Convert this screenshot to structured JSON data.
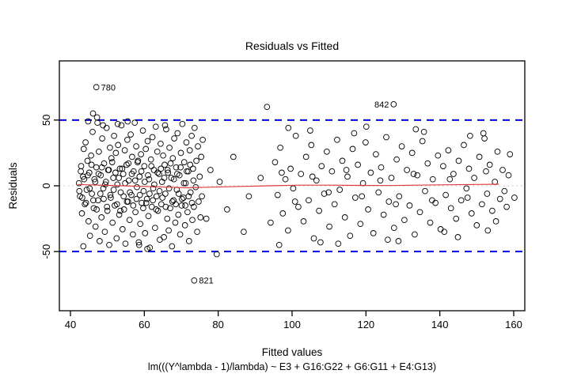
{
  "chart_data": {
    "type": "scatter",
    "title": "Residuals vs Fitted",
    "xlabel": "Fitted values",
    "ylabel": "Residuals",
    "subtitle": "lm(((Y^lambda - 1)/lambda) ~ E3 + G16:G22 + G6:G11 + E4:G13)",
    "xlim": [
      37,
      163
    ],
    "ylim": [
      -95,
      95
    ],
    "x_ticks": [
      40,
      60,
      80,
      100,
      120,
      140,
      160
    ],
    "y_ticks": [
      -50,
      0,
      50
    ],
    "grid": false,
    "legend": "none",
    "reference_lines": [
      {
        "y": 50,
        "style": "dashed",
        "color": "#0000ee",
        "width": 2
      },
      {
        "y": -50,
        "style": "dashed",
        "color": "#0000ee",
        "width": 2
      },
      {
        "y": 0,
        "style": "dotted",
        "color": "#c8c8c8",
        "width": 1.2
      }
    ],
    "smoother": {
      "color": "#e03c3c",
      "width": 1.2,
      "points": [
        [
          42,
          1
        ],
        [
          48,
          0.5
        ],
        [
          54,
          0
        ],
        [
          60,
          -0.5
        ],
        [
          66,
          -1
        ],
        [
          72,
          -1.5
        ],
        [
          78,
          -1
        ],
        [
          86,
          -0.5
        ],
        [
          94,
          0
        ],
        [
          102,
          0.5
        ],
        [
          110,
          0.5
        ],
        [
          118,
          0.3
        ],
        [
          126,
          0.2
        ],
        [
          134,
          0.5
        ],
        [
          142,
          0.8
        ],
        [
          150,
          1
        ],
        [
          156,
          1.2
        ]
      ]
    },
    "outliers": [
      {
        "x": 47.0,
        "y": 75,
        "label": "780",
        "label_side": "right"
      },
      {
        "x": 127.5,
        "y": 62,
        "label": "842",
        "label_side": "left"
      },
      {
        "x": 73.5,
        "y": -72,
        "label": "821",
        "label_side": "right"
      }
    ],
    "points": [
      [
        42.3,
        2
      ],
      [
        42.6,
        -8
      ],
      [
        42.9,
        15
      ],
      [
        43.1,
        -21
      ],
      [
        43.4,
        7
      ],
      [
        43.6,
        28
      ],
      [
        43.9,
        -14
      ],
      [
        44.1,
        33
      ],
      [
        44.4,
        -3
      ],
      [
        44.6,
        19
      ],
      [
        44.9,
        -27
      ],
      [
        45.1,
        10
      ],
      [
        45.3,
        -38
      ],
      [
        45.6,
        23
      ],
      [
        45.8,
        -6
      ],
      [
        46.0,
        41
      ],
      [
        46.3,
        -17
      ],
      [
        46.5,
        5
      ],
      [
        46.8,
        -31
      ],
      [
        47.0,
        14
      ],
      [
        47.2,
        52
      ],
      [
        47.5,
        -11
      ],
      [
        47.7,
        26
      ],
      [
        47.9,
        -42
      ],
      [
        48.2,
        8
      ],
      [
        48.4,
        -24
      ],
      [
        48.6,
        36
      ],
      [
        48.9,
        -2
      ],
      [
        49.1,
        17
      ],
      [
        49.3,
        -35
      ],
      [
        49.6,
        3
      ],
      [
        49.8,
        44
      ],
      [
        50.0,
        -19
      ],
      [
        50.2,
        12
      ],
      [
        50.5,
        -45
      ],
      [
        50.7,
        29
      ],
      [
        50.9,
        -9
      ],
      [
        51.1,
        21
      ],
      [
        51.4,
        -28
      ],
      [
        51.6,
        6
      ],
      [
        51.8,
        38
      ],
      [
        52.0,
        -15
      ],
      [
        52.3,
        25
      ],
      [
        52.5,
        -40
      ],
      [
        52.7,
        1
      ],
      [
        52.9,
        31
      ],
      [
        53.2,
        -22
      ],
      [
        53.4,
        13
      ],
      [
        53.6,
        -5
      ],
      [
        53.8,
        46
      ],
      [
        54.1,
        -33
      ],
      [
        54.3,
        9
      ],
      [
        54.5,
        -18
      ],
      [
        54.7,
        27
      ],
      [
        54.9,
        -44
      ],
      [
        55.2,
        16
      ],
      [
        55.4,
        35
      ],
      [
        55.6,
        -12
      ],
      [
        55.8,
        4
      ],
      [
        56.0,
        -26
      ],
      [
        56.3,
        39
      ],
      [
        56.5,
        -7
      ],
      [
        56.7,
        22
      ],
      [
        56.9,
        -37
      ],
      [
        57.1,
        11
      ],
      [
        57.4,
        48
      ],
      [
        57.6,
        -20
      ],
      [
        57.8,
        30
      ],
      [
        58.0,
        -1
      ],
      [
        58.2,
        18
      ],
      [
        58.5,
        -43
      ],
      [
        58.7,
        7
      ],
      [
        58.9,
        -29
      ],
      [
        59.1,
        24
      ],
      [
        59.3,
        -13
      ],
      [
        59.6,
        42
      ],
      [
        59.8,
        -4
      ],
      [
        60.0,
        15
      ],
      [
        60.2,
        -36
      ],
      [
        60.4,
        28
      ],
      [
        60.7,
        -10
      ],
      [
        60.9,
        34
      ],
      [
        61.1,
        -23
      ],
      [
        61.3,
        5
      ],
      [
        61.5,
        -47
      ],
      [
        61.8,
        20
      ],
      [
        62.0,
        -16
      ],
      [
        62.2,
        37
      ],
      [
        62.4,
        -2
      ],
      [
        62.6,
        12
      ],
      [
        62.9,
        -32
      ],
      [
        63.1,
        45
      ],
      [
        63.3,
        -8
      ],
      [
        63.5,
        26
      ],
      [
        63.7,
        -19
      ],
      [
        64.0,
        9
      ],
      [
        64.2,
        -41
      ],
      [
        64.4,
        32
      ],
      [
        64.6,
        -14
      ],
      [
        64.8,
        3
      ],
      [
        65.1,
        23
      ],
      [
        65.3,
        -39
      ],
      [
        65.5,
        16
      ],
      [
        65.7,
        -6
      ],
      [
        65.9,
        43
      ],
      [
        66.2,
        -25
      ],
      [
        66.4,
        10
      ],
      [
        66.6,
        -34
      ],
      [
        66.8,
        29
      ],
      [
        67.0,
        -17
      ],
      [
        67.3,
        6
      ],
      [
        67.5,
        -46
      ],
      [
        67.7,
        21
      ],
      [
        67.9,
        -11
      ],
      [
        68.1,
        36
      ],
      [
        68.4,
        -28
      ],
      [
        68.6,
        14
      ],
      [
        68.8,
        -3
      ],
      [
        69.0,
        40
      ],
      [
        69.2,
        -22
      ],
      [
        69.5,
        8
      ],
      [
        69.7,
        -37
      ],
      [
        69.9,
        25
      ],
      [
        70.1,
        -15
      ],
      [
        70.3,
        47
      ],
      [
        70.6,
        -9
      ],
      [
        70.8,
        18
      ],
      [
        71.0,
        -30
      ],
      [
        71.2,
        2
      ],
      [
        71.4,
        33
      ],
      [
        71.7,
        -20
      ],
      [
        71.9,
        11
      ],
      [
        72.1,
        -42
      ],
      [
        72.3,
        27
      ],
      [
        72.5,
        -5
      ],
      [
        72.8,
        38
      ],
      [
        73.0,
        -26
      ],
      [
        73.2,
        13
      ],
      [
        73.4,
        -16
      ],
      [
        73.6,
        44
      ],
      [
        73.9,
        -1
      ],
      [
        74.1,
        19
      ],
      [
        74.3,
        -35
      ],
      [
        74.5,
        30
      ],
      [
        74.7,
        -12
      ],
      [
        75.0,
        7
      ],
      [
        75.2,
        -24
      ],
      [
        75.4,
        22
      ],
      [
        75.6,
        -8
      ],
      [
        75.8,
        35
      ],
      [
        42.4,
        -4
      ],
      [
        42.8,
        11
      ],
      [
        43.2,
        -9
      ],
      [
        43.7,
        5
      ],
      [
        44.2,
        -13
      ],
      [
        44.7,
        8
      ],
      [
        45.2,
        -2
      ],
      [
        45.7,
        16
      ],
      [
        46.2,
        -11
      ],
      [
        46.7,
        3
      ],
      [
        47.1,
        -18
      ],
      [
        47.6,
        9
      ],
      [
        48.1,
        -6
      ],
      [
        48.5,
        14
      ],
      [
        49.0,
        -10
      ],
      [
        49.4,
        1
      ],
      [
        49.9,
        -16
      ],
      [
        50.4,
        12
      ],
      [
        50.8,
        -7
      ],
      [
        51.3,
        18
      ],
      [
        51.7,
        -3
      ],
      [
        52.2,
        10
      ],
      [
        52.6,
        -14
      ],
      [
        53.1,
        6
      ],
      [
        53.5,
        -19
      ],
      [
        54.0,
        13
      ],
      [
        54.4,
        -8
      ],
      [
        54.8,
        2
      ],
      [
        55.3,
        -12
      ],
      [
        55.7,
        17
      ],
      [
        56.1,
        -5
      ],
      [
        56.6,
        9
      ],
      [
        57.0,
        -15
      ],
      [
        57.5,
        4
      ],
      [
        57.9,
        -10
      ],
      [
        58.3,
        19
      ],
      [
        58.8,
        -7
      ],
      [
        59.2,
        11
      ],
      [
        59.7,
        -17
      ],
      [
        60.1,
        3
      ],
      [
        60.5,
        -13
      ],
      [
        61.0,
        8
      ],
      [
        61.4,
        -6
      ],
      [
        61.9,
        15
      ],
      [
        62.3,
        -11
      ],
      [
        62.7,
        1
      ],
      [
        63.2,
        -18
      ],
      [
        63.6,
        10
      ],
      [
        64.1,
        -4
      ],
      [
        64.5,
        13
      ],
      [
        64.9,
        -9
      ],
      [
        65.4,
        6
      ],
      [
        65.8,
        -16
      ],
      [
        66.3,
        12
      ],
      [
        66.7,
        -2
      ],
      [
        67.1,
        17
      ],
      [
        67.6,
        -12
      ],
      [
        68.0,
        5
      ],
      [
        68.5,
        -14
      ],
      [
        68.9,
        9
      ],
      [
        69.3,
        -6
      ],
      [
        69.8,
        14
      ],
      [
        70.2,
        -10
      ],
      [
        70.7,
        2
      ],
      [
        71.1,
        -15
      ],
      [
        71.5,
        11
      ],
      [
        72.0,
        -8
      ],
      [
        72.4,
        16
      ],
      [
        72.9,
        -13
      ],
      [
        73.3,
        4
      ],
      [
        44.8,
        49
      ],
      [
        46.1,
        55
      ],
      [
        48.8,
        46
      ],
      [
        43.5,
        -46
      ],
      [
        47.3,
        48
      ],
      [
        55.5,
        49
      ],
      [
        60.8,
        -48
      ],
      [
        52.8,
        47
      ],
      [
        58.6,
        -45
      ],
      [
        65.6,
        46
      ],
      [
        76.8,
        -25
      ],
      [
        77.9,
        12
      ],
      [
        79.6,
        -52
      ],
      [
        80.4,
        3
      ],
      [
        82.4,
        -18
      ],
      [
        84.1,
        22
      ],
      [
        86.9,
        -35
      ],
      [
        88.3,
        -8
      ],
      [
        91.5,
        6
      ],
      [
        93.2,
        60
      ],
      [
        94.2,
        -28
      ],
      [
        95.4,
        18
      ],
      [
        96.1,
        -7
      ],
      [
        96.8,
        29
      ],
      [
        97.5,
        -21
      ],
      [
        98.2,
        5
      ],
      [
        98.9,
        -34
      ],
      [
        99.6,
        13
      ],
      [
        100.3,
        -2
      ],
      [
        101.0,
        38
      ],
      [
        101.7,
        -16
      ],
      [
        102.4,
        9
      ],
      [
        103.1,
        -27
      ],
      [
        103.8,
        22
      ],
      [
        104.5,
        -11
      ],
      [
        105.2,
        31
      ],
      [
        105.9,
        -40
      ],
      [
        106.6,
        4
      ],
      [
        107.3,
        -19
      ],
      [
        108.0,
        15
      ],
      [
        108.7,
        -6
      ],
      [
        109.4,
        26
      ],
      [
        110.1,
        -31
      ],
      [
        110.8,
        11
      ],
      [
        111.5,
        -14
      ],
      [
        112.2,
        35
      ],
      [
        112.9,
        -3
      ],
      [
        113.6,
        19
      ],
      [
        114.3,
        -24
      ],
      [
        115.0,
        7
      ],
      [
        115.7,
        -38
      ],
      [
        116.4,
        28
      ],
      [
        117.1,
        -9
      ],
      [
        117.8,
        16
      ],
      [
        118.5,
        -29
      ],
      [
        119.2,
        2
      ],
      [
        119.9,
        33
      ],
      [
        120.6,
        -18
      ],
      [
        121.3,
        10
      ],
      [
        122.0,
        -36
      ],
      [
        122.7,
        24
      ],
      [
        123.4,
        -5
      ],
      [
        124.1,
        14
      ],
      [
        124.8,
        -22
      ],
      [
        125.5,
        37
      ],
      [
        126.2,
        -12
      ],
      [
        126.9,
        6
      ],
      [
        127.6,
        -32
      ],
      [
        128.3,
        20
      ],
      [
        129.0,
        -8
      ],
      [
        129.7,
        30
      ],
      [
        130.4,
        -26
      ],
      [
        131.1,
        12
      ],
      [
        131.8,
        -15
      ],
      [
        132.5,
        25
      ],
      [
        133.2,
        -37
      ],
      [
        133.9,
        8
      ],
      [
        134.6,
        -20
      ],
      [
        135.3,
        34
      ],
      [
        136.0,
        -4
      ],
      [
        136.7,
        17
      ],
      [
        137.4,
        -28
      ],
      [
        138.1,
        5
      ],
      [
        138.8,
        -13
      ],
      [
        139.5,
        23
      ],
      [
        140.2,
        -33
      ],
      [
        140.9,
        15
      ],
      [
        141.6,
        -7
      ],
      [
        142.3,
        27
      ],
      [
        143.0,
        -17
      ],
      [
        143.7,
        9
      ],
      [
        144.4,
        -25
      ],
      [
        145.1,
        19
      ],
      [
        145.8,
        -11
      ],
      [
        146.5,
        31
      ],
      [
        147.2,
        -2
      ],
      [
        147.9,
        13
      ],
      [
        148.6,
        -21
      ],
      [
        149.3,
        6
      ],
      [
        150.0,
        -30
      ],
      [
        150.7,
        22
      ],
      [
        151.4,
        -14
      ],
      [
        152.1,
        36
      ],
      [
        152.8,
        -6
      ],
      [
        153.5,
        16
      ],
      [
        154.2,
        -19
      ],
      [
        154.9,
        3
      ],
      [
        155.6,
        26
      ],
      [
        156.3,
        -10
      ],
      [
        157.0,
        12
      ],
      [
        158.1,
        -16
      ],
      [
        159.0,
        24
      ],
      [
        160.2,
        -9
      ],
      [
        96.5,
        -45
      ],
      [
        104.9,
        42
      ],
      [
        112.5,
        -44
      ],
      [
        120.1,
        45
      ],
      [
        128.8,
        -42
      ],
      [
        135.7,
        41
      ],
      [
        144.9,
        -39
      ],
      [
        151.8,
        40
      ],
      [
        99.0,
        44
      ],
      [
        107.7,
        -43
      ],
      [
        116.8,
        40
      ],
      [
        125.9,
        -41
      ],
      [
        133.5,
        43
      ],
      [
        141.2,
        -35
      ],
      [
        148.2,
        38
      ],
      [
        155.2,
        -27
      ],
      [
        158.6,
        8
      ],
      [
        153.0,
        -34
      ],
      [
        97.2,
        10
      ],
      [
        100.8,
        -12
      ],
      [
        105.5,
        7
      ],
      [
        109.9,
        -5
      ],
      [
        114.7,
        12
      ],
      [
        118.9,
        -8
      ],
      [
        123.9,
        4
      ],
      [
        128.1,
        -14
      ],
      [
        132.9,
        9
      ],
      [
        137.9,
        -11
      ],
      [
        142.7,
        5
      ],
      [
        147.5,
        -9
      ],
      [
        152.5,
        11
      ],
      [
        157.5,
        -4
      ]
    ]
  },
  "colors": {
    "background": "#ffffff",
    "axis": "#000000",
    "point_stroke": "#000000",
    "dashed_reference": "#0000ee",
    "smoother": "#e03c3c",
    "zero_line": "#c8c8c8"
  }
}
